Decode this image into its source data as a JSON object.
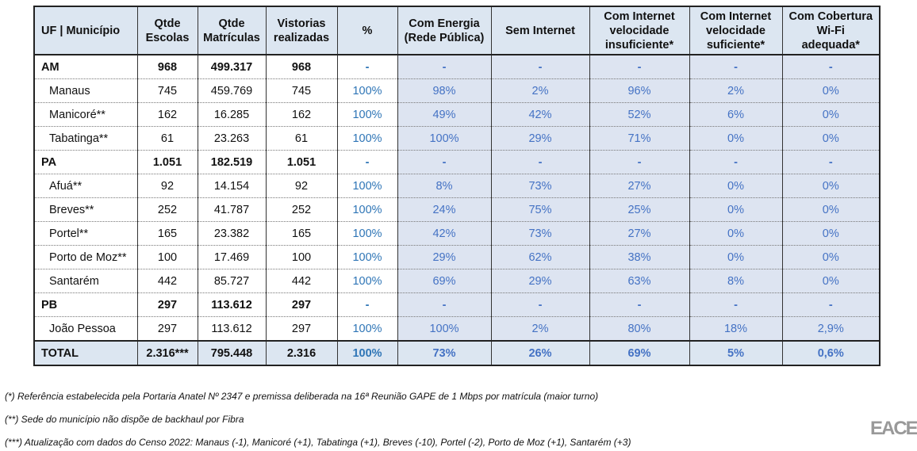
{
  "table": {
    "header": [
      "UF | Município",
      "Qtde\nEscolas",
      "Qtde\nMatrículas",
      "Vistorias\nrealizadas",
      "%",
      "Com Energia\n(Rede Pública)",
      "Sem Internet",
      "Com Internet\nvelocidade\ninsuficiente*",
      "Com Internet\nvelocidade\nsuficiente*",
      "Com Cobertura\nWi-Fi\nadequada*"
    ],
    "rows": [
      [
        "AM",
        "968",
        "499.317",
        "968",
        "-",
        "-",
        "-",
        "-",
        "-",
        "-"
      ],
      [
        "Manaus",
        "745",
        "459.769",
        "745",
        "100%",
        "98%",
        "2%",
        "96%",
        "2%",
        "0%"
      ],
      [
        "Manicoré**",
        "162",
        "16.285",
        "162",
        "100%",
        "49%",
        "42%",
        "52%",
        "6%",
        "0%"
      ],
      [
        "Tabatinga**",
        "61",
        "23.263",
        "61",
        "100%",
        "100%",
        "29%",
        "71%",
        "0%",
        "0%"
      ],
      [
        "PA",
        "1.051",
        "182.519",
        "1.051",
        "-",
        "-",
        "-",
        "-",
        "-",
        "-"
      ],
      [
        "Afuá**",
        "92",
        "14.154",
        "92",
        "100%",
        "8%",
        "73%",
        "27%",
        "0%",
        "0%"
      ],
      [
        "Breves**",
        "252",
        "41.787",
        "252",
        "100%",
        "24%",
        "75%",
        "25%",
        "0%",
        "0%"
      ],
      [
        "Portel**",
        "165",
        "23.382",
        "165",
        "100%",
        "42%",
        "73%",
        "27%",
        "0%",
        "0%"
      ],
      [
        "Porto de Moz**",
        "100",
        "17.469",
        "100",
        "100%",
        "29%",
        "62%",
        "38%",
        "0%",
        "0%"
      ],
      [
        "Santarém",
        "442",
        "85.727",
        "442",
        "100%",
        "69%",
        "29%",
        "63%",
        "8%",
        "0%"
      ],
      [
        "PB",
        "297",
        "113.612",
        "297",
        "-",
        "-",
        "-",
        "-",
        "-",
        "-"
      ],
      [
        "João Pessoa",
        "297",
        "113.612",
        "297",
        "100%",
        "100%",
        "2%",
        "80%",
        "18%",
        "2,9%"
      ],
      [
        "TOTAL",
        "2.316***",
        "795.448",
        "2.316",
        "100%",
        "73%",
        "26%",
        "69%",
        "5%",
        "0,6%"
      ]
    ]
  },
  "footnotes": [
    "(*) Referência estabelecida pela Portaria Anatel Nº 2347 e premissa deliberada na 16ª Reunião GAPE de 1 Mbps por matrícula (maior turno)",
    "(**) Sede do município não dispõe de backhaul por Fibra",
    "(***) Atualização com dados do Censo 2022: Manaus (-1), Manicoré (+1), Tabatinga (+1), Breves (-10), Portel (-2), Porto de Moz (+1), Santarém (+3)"
  ],
  "logo": "EACE"
}
